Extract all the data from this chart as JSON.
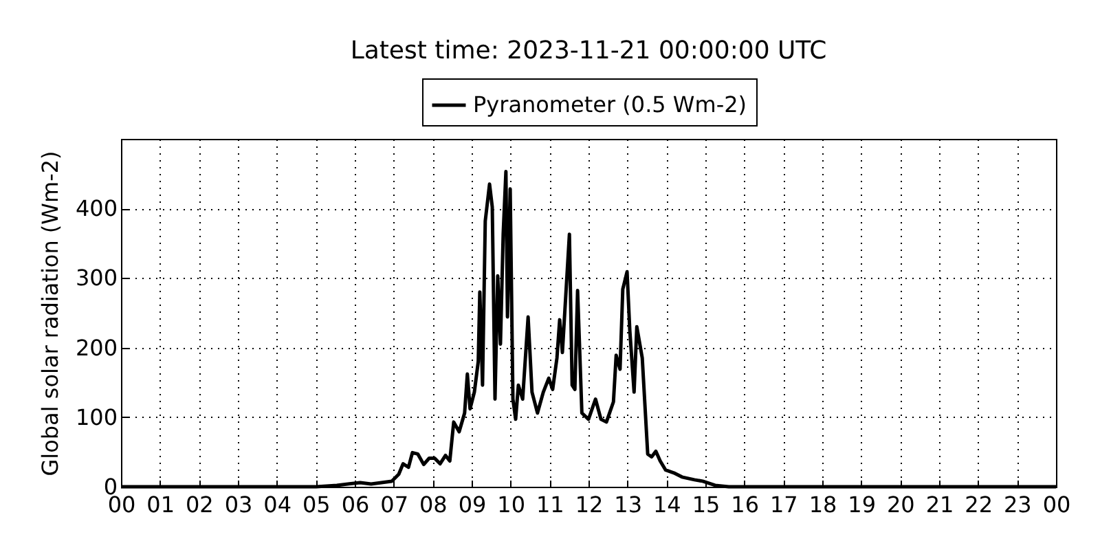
{
  "chart_data": {
    "type": "line",
    "title": "Latest time: 2023-11-21 00:00:00 UTC",
    "ylabel": "Global solar radiation (Wm-2)",
    "x": [
      0,
      5.01,
      5.54,
      6.14,
      6.42,
      6.95,
      7.13,
      7.24,
      7.38,
      7.48,
      7.62,
      7.77,
      7.91,
      8.05,
      8.19,
      8.33,
      8.44,
      8.54,
      8.68,
      8.82,
      8.89,
      8.96,
      9.07,
      9.17,
      9.21,
      9.28,
      9.35,
      9.46,
      9.53,
      9.6,
      9.67,
      9.74,
      9.81,
      9.88,
      9.92,
      9.99,
      10.06,
      10.13,
      10.2,
      10.31,
      10.45,
      10.55,
      10.69,
      10.84,
      10.98,
      11.08,
      11.19,
      11.26,
      11.33,
      11.51,
      11.58,
      11.65,
      11.72,
      11.83,
      12,
      12.18,
      12.32,
      12.46,
      12.64,
      12.71,
      12.81,
      12.88,
      12.99,
      13.06,
      13.17,
      13.24,
      13.38,
      13.52,
      13.62,
      13.73,
      13.84,
      13.98,
      14.19,
      14.4,
      14.72,
      14.93,
      15.25,
      15.6,
      24
    ],
    "series": [
      {
        "name": "Pyranometer (0.5 Wm-2)",
        "color": "#000000",
        "values": [
          0,
          0,
          2,
          6,
          4,
          8,
          18,
          33,
          28,
          49,
          47,
          32,
          41,
          41,
          33,
          45,
          37,
          93,
          79,
          106,
          162,
          112,
          136,
          180,
          280,
          146,
          382,
          435,
          402,
          126,
          303,
          205,
          363,
          453,
          244,
          428,
          126,
          97,
          146,
          126,
          244,
          136,
          106,
          136,
          156,
          140,
          185,
          240,
          193,
          363,
          146,
          140,
          282,
          106,
          97,
          126,
          97,
          93,
          122,
          189,
          169,
          284,
          309,
          225,
          136,
          230,
          185,
          47,
          43,
          51,
          37,
          24,
          20,
          14,
          10,
          8,
          2,
          0,
          0
        ]
      }
    ],
    "xlim": [
      0,
      24
    ],
    "xticks": [
      {
        "value": 0,
        "label": "00"
      },
      {
        "value": 1,
        "label": "01"
      },
      {
        "value": 2,
        "label": "02"
      },
      {
        "value": 3,
        "label": "03"
      },
      {
        "value": 4,
        "label": "04"
      },
      {
        "value": 5,
        "label": "05"
      },
      {
        "value": 6,
        "label": "06"
      },
      {
        "value": 7,
        "label": "07"
      },
      {
        "value": 8,
        "label": "08"
      },
      {
        "value": 9,
        "label": "09"
      },
      {
        "value": 10,
        "label": "10"
      },
      {
        "value": 11,
        "label": "11"
      },
      {
        "value": 12,
        "label": "12"
      },
      {
        "value": 13,
        "label": "13"
      },
      {
        "value": 14,
        "label": "14"
      },
      {
        "value": 15,
        "label": "15"
      },
      {
        "value": 16,
        "label": "16"
      },
      {
        "value": 17,
        "label": "17"
      },
      {
        "value": 18,
        "label": "18"
      },
      {
        "value": 19,
        "label": "19"
      },
      {
        "value": 20,
        "label": "20"
      },
      {
        "value": 21,
        "label": "21"
      },
      {
        "value": 22,
        "label": "22"
      },
      {
        "value": 23,
        "label": "23"
      },
      {
        "value": 24,
        "label": "00"
      }
    ],
    "ylim": [
      0,
      500
    ],
    "yticks": [
      0,
      100,
      200,
      300,
      400
    ],
    "grid": true,
    "legend": "top",
    "line_style": "solid",
    "marker": "none"
  }
}
